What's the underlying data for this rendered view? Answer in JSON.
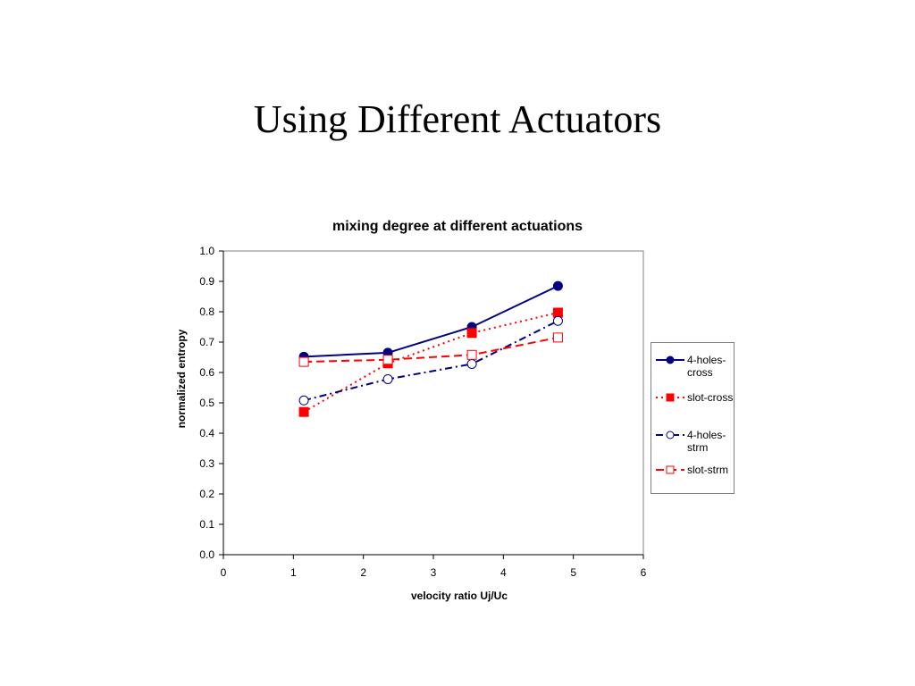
{
  "slide": {
    "title": "Using Different Actuators"
  },
  "chart_data": {
    "type": "line",
    "title": "mixing degree at different actuations",
    "xlabel": "velocity ratio Uj/Uc",
    "ylabel": "normalized entropy",
    "xlim": [
      0,
      6
    ],
    "ylim": [
      0,
      1
    ],
    "xticks": [
      0,
      1,
      2,
      3,
      4,
      5,
      6
    ],
    "yticks": [
      0.0,
      0.1,
      0.2,
      0.3,
      0.4,
      0.5,
      0.6,
      0.7,
      0.8,
      0.9,
      1.0
    ],
    "ytick_labels": [
      "0.0",
      "0.1",
      "0.2",
      "0.3",
      "0.4",
      "0.5",
      "0.6",
      "0.7",
      "0.8",
      "0.9",
      "1.0"
    ],
    "grid": false,
    "legend_position": "right",
    "series": [
      {
        "name": "4-holes-cross",
        "color": "#000080",
        "dash": "solid",
        "marker": "circle-filled",
        "x": [
          1.15,
          2.35,
          3.55,
          4.78
        ],
        "y": [
          0.652,
          0.665,
          0.75,
          0.885
        ]
      },
      {
        "name": "slot-cross",
        "color": "#ff0000",
        "dash": "dotted",
        "marker": "square-filled",
        "x": [
          1.15,
          2.35,
          3.55,
          4.78
        ],
        "y": [
          0.47,
          0.63,
          0.73,
          0.797
        ]
      },
      {
        "name": "4-holes-strm",
        "color": "#000080",
        "dash": "dashdot",
        "marker": "circle-open",
        "x": [
          1.15,
          2.35,
          3.55,
          4.78
        ],
        "y": [
          0.508,
          0.578,
          0.628,
          0.77
        ]
      },
      {
        "name": "slot-strm",
        "color": "#ff0000",
        "dash": "dashed",
        "marker": "square-open",
        "x": [
          1.15,
          2.35,
          3.55,
          4.78
        ],
        "y": [
          0.635,
          0.642,
          0.658,
          0.715
        ]
      }
    ]
  }
}
